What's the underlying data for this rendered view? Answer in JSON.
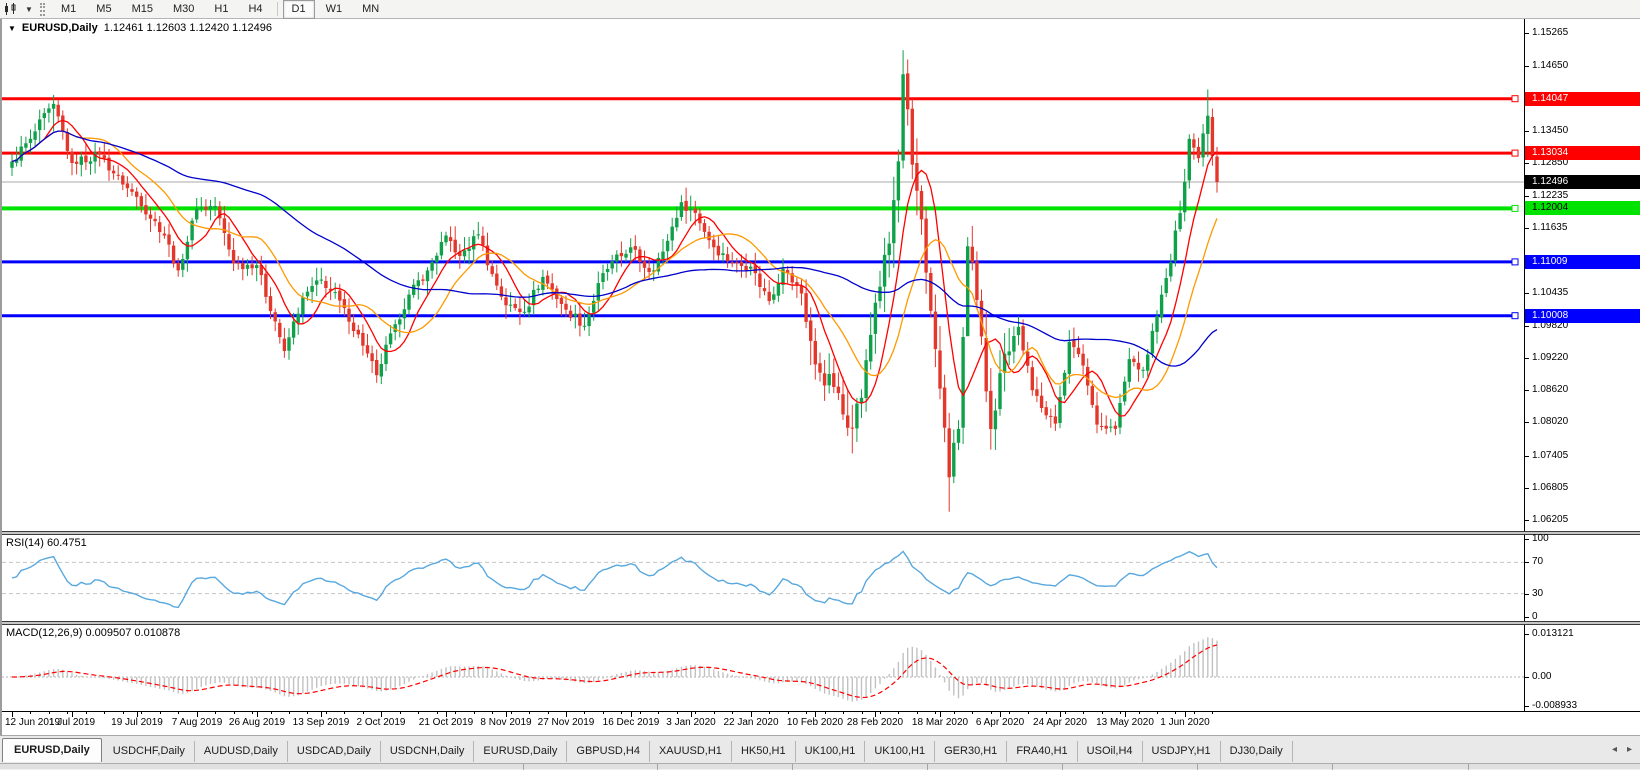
{
  "toolbar": {
    "timeframes": [
      "M1",
      "M5",
      "M15",
      "M30",
      "H1",
      "H4",
      "D1",
      "W1",
      "MN"
    ],
    "active_timeframe": "D1"
  },
  "chart": {
    "title_symbol": "EURUSD,Daily",
    "title_ohlc": "1.12461 1.12603 1.12420 1.12496"
  },
  "rsi": {
    "label": "RSI(14) 60.4751",
    "period": 14,
    "value": 60.4751,
    "axis": [
      100,
      70,
      30,
      0
    ],
    "guides": [
      70,
      30
    ],
    "color": "#58A8DF"
  },
  "macd": {
    "label": "MACD(12,26,9) 0.009507 0.010878",
    "fast": 12,
    "slow": 26,
    "signal": 9,
    "main_value": 0.009507,
    "signal_value": 0.010878,
    "axis": [
      {
        "label": "0.013121",
        "value": 0.013121
      },
      {
        "label": "0.00",
        "value": 0
      },
      {
        "label": "-0.008933",
        "value": -0.008933
      }
    ],
    "hist_color": "#c2c2c2",
    "signal_color": "#FF0000"
  },
  "dates": [
    {
      "idx": 0,
      "label": "12 Jun 2019"
    },
    {
      "idx": 13,
      "label": "1 Jul 2019"
    },
    {
      "idx": 27,
      "label": "19 Jul 2019"
    },
    {
      "idx": 40,
      "label": "7 Aug 2019"
    },
    {
      "idx": 53,
      "label": "26 Aug 2019"
    },
    {
      "idx": 67,
      "label": "13 Sep 2019"
    },
    {
      "idx": 80,
      "label": "2 Oct 2019"
    },
    {
      "idx": 94,
      "label": "21 Oct 2019"
    },
    {
      "idx": 107,
      "label": "8 Nov 2019"
    },
    {
      "idx": 120,
      "label": "27 Nov 2019"
    },
    {
      "idx": 134,
      "label": "16 Dec 2019"
    },
    {
      "idx": 147,
      "label": "3 Jan 2020"
    },
    {
      "idx": 160,
      "label": "22 Jan 2020"
    },
    {
      "idx": 174,
      "label": "10 Feb 2020"
    },
    {
      "idx": 187,
      "label": "28 Feb 2020"
    },
    {
      "idx": 201,
      "label": "18 Mar 2020"
    },
    {
      "idx": 214,
      "label": "6 Apr 2020"
    },
    {
      "idx": 227,
      "label": "24 Apr 2020"
    },
    {
      "idx": 241,
      "label": "13 May 2020"
    },
    {
      "idx": 254,
      "label": "1 Jun 2020"
    }
  ],
  "tabs": {
    "items": [
      "EURUSD,Daily",
      "USDCHF,Daily",
      "AUDUSD,Daily",
      "USDCAD,Daily",
      "USDCNH,Daily",
      "EURUSD,Daily",
      "GBPUSD,H4",
      "XAUUSD,H1",
      "HK50,H1",
      "UK100,H1",
      "UK100,H1",
      "GER30,H1",
      "FRA40,H1",
      "USOil,H4",
      "USDJPY,H1",
      "DJ30,Daily"
    ],
    "active_index": 0,
    "scroll_left_icon": "◂",
    "scroll_right_icon": "▸"
  },
  "chart_data": {
    "type": "candlestick",
    "symbol": "EURUSD",
    "timeframe": "Daily",
    "ohlc_current": {
      "open": 1.12461,
      "high": 1.12603,
      "low": 1.1242,
      "close": 1.12496
    },
    "ylim": [
      1.06,
      1.1553
    ],
    "candle_count": 262,
    "up_color": "#0FA04A",
    "down_color": "#E4372B",
    "current_price": 1.12496,
    "current_price_label": "1.12496",
    "current_line_color": "#a8a8a8",
    "price_ticks": [
      "1.15265",
      "1.14650",
      "1.13450",
      "1.12850",
      "1.12235",
      "1.11635",
      "1.10435",
      "1.09820",
      "1.09220",
      "1.08620",
      "1.08020",
      "1.07405",
      "1.06805",
      "1.06205"
    ],
    "levels": [
      {
        "price": 1.14047,
        "label": "1.14047",
        "color": "#FF0000",
        "text_color": "#FFFFFF",
        "width": 3
      },
      {
        "price": 1.13034,
        "label": "1.13034",
        "color": "#FF0000",
        "text_color": "#FFFFFF",
        "width": 3
      },
      {
        "price": 1.12004,
        "label": "1.12004",
        "color": "#00E200",
        "text_color": "#000000",
        "width": 4
      },
      {
        "price": 1.11009,
        "label": "1.11009",
        "color": "#0000FF",
        "text_color": "#FFFFFF",
        "width": 3
      },
      {
        "price": 1.10008,
        "label": "1.10008",
        "color": "#0000FF",
        "text_color": "#FFFFFF",
        "width": 3
      }
    ],
    "moving_averages": [
      {
        "name": "ma-fast-red",
        "period": 8,
        "color": "#FF0000"
      },
      {
        "name": "ma-mid-orange",
        "period": 16,
        "color": "#FF9900"
      },
      {
        "name": "ma-slow-blue",
        "period": 55,
        "color": "#0000CC"
      }
    ],
    "close_anchors": [
      [
        0,
        1.1288
      ],
      [
        4,
        1.133
      ],
      [
        9,
        1.1395
      ],
      [
        13,
        1.1285
      ],
      [
        19,
        1.1302
      ],
      [
        24,
        1.1245
      ],
      [
        27,
        1.1222
      ],
      [
        33,
        1.115
      ],
      [
        36,
        1.1085
      ],
      [
        40,
        1.12
      ],
      [
        44,
        1.1205
      ],
      [
        48,
        1.1098
      ],
      [
        53,
        1.1095
      ],
      [
        57,
        1.099
      ],
      [
        59,
        1.0935
      ],
      [
        63,
        1.1035
      ],
      [
        67,
        1.1068
      ],
      [
        72,
        1.1015
      ],
      [
        76,
        1.0945
      ],
      [
        79,
        1.089
      ],
      [
        83,
        1.0985
      ],
      [
        86,
        1.104
      ],
      [
        90,
        1.1085
      ],
      [
        94,
        1.115
      ],
      [
        97,
        1.1112
      ],
      [
        101,
        1.1152
      ],
      [
        104,
        1.1078
      ],
      [
        107,
        1.102
      ],
      [
        111,
        1.1008
      ],
      [
        115,
        1.1073
      ],
      [
        120,
        1.1012
      ],
      [
        124,
        1.0982
      ],
      [
        128,
        1.108
      ],
      [
        134,
        1.1128
      ],
      [
        138,
        1.1082
      ],
      [
        141,
        1.112
      ],
      [
        145,
        1.1212
      ],
      [
        148,
        1.1192
      ],
      [
        152,
        1.1128
      ],
      [
        156,
        1.1098
      ],
      [
        160,
        1.1092
      ],
      [
        164,
        1.1028
      ],
      [
        167,
        1.1088
      ],
      [
        171,
        1.1042
      ],
      [
        174,
        1.091
      ],
      [
        178,
        1.0868
      ],
      [
        181,
        1.0792
      ],
      [
        184,
        1.0848
      ],
      [
        187,
        1.1025
      ],
      [
        190,
        1.1135
      ],
      [
        192,
        1.1288
      ],
      [
        193,
        1.145
      ],
      [
        195,
        1.1282
      ],
      [
        197,
        1.118
      ],
      [
        199,
        1.101
      ],
      [
        201,
        1.0865
      ],
      [
        203,
        1.07
      ],
      [
        205,
        1.079
      ],
      [
        207,
        1.113
      ],
      [
        209,
        1.103
      ],
      [
        212,
        1.079
      ],
      [
        215,
        1.093
      ],
      [
        218,
        1.098
      ],
      [
        221,
        1.0862
      ],
      [
        226,
        1.08
      ],
      [
        229,
        1.0952
      ],
      [
        232,
        1.0908
      ],
      [
        235,
        1.0798
      ],
      [
        239,
        1.079
      ],
      [
        242,
        1.092
      ],
      [
        245,
        1.09
      ],
      [
        248,
        1.1
      ],
      [
        251,
        1.11
      ],
      [
        254,
        1.125
      ],
      [
        255,
        1.133
      ],
      [
        257,
        1.1294
      ],
      [
        258,
        1.134
      ],
      [
        259,
        1.1373
      ],
      [
        260,
        1.1298
      ],
      [
        261,
        1.12496
      ]
    ],
    "wick_overrides": {
      "9": {
        "h": 1.1412,
        "l": 1.1344
      },
      "181": {
        "h": 1.0864,
        "l": 1.0777
      },
      "193": {
        "h": 1.1495,
        "l": 1.1275
      },
      "203": {
        "h": 1.082,
        "l": 1.0636
      },
      "207": {
        "h": 1.1147,
        "l": 1.0989
      },
      "259": {
        "h": 1.1422,
        "l": 1.1296
      }
    },
    "volatile_range": [
      172,
      216
    ],
    "volatile_factor": 2.0
  }
}
